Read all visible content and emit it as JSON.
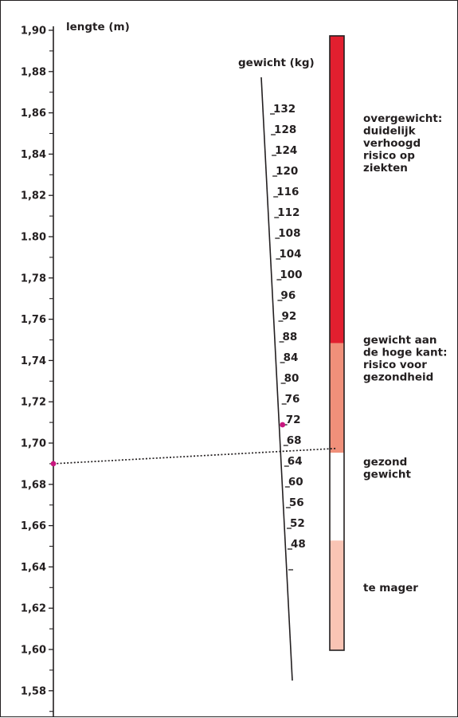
{
  "chart_data": {
    "type": "nomogram",
    "height_axis": {
      "title": "lengte (m)",
      "ticks": [
        "1,90",
        "1,88",
        "1,86",
        "1,84",
        "1,82",
        "1.80",
        "1,78",
        "1,76",
        "1,74",
        "1,72",
        "1,70",
        "1,68",
        "1,66",
        "1,64",
        "1,62",
        "1,60",
        "1,58"
      ]
    },
    "weight_axis": {
      "title": "gewicht (kg)",
      "ticks": [
        "132",
        "128",
        "124",
        "120",
        "116",
        "112",
        "108",
        "104",
        "100",
        "96",
        "92",
        "88",
        "84",
        "80",
        "76",
        "72",
        "68",
        "64",
        "60",
        "56",
        "52",
        "48"
      ]
    },
    "bmi_zones": [
      {
        "label_lines": [
          "overgewicht:",
          "duidelijk",
          "verhoogd",
          "risico op",
          "ziekten"
        ],
        "color": "#e21f2f",
        "bmi_from": 30,
        "bmi_to": 44
      },
      {
        "label_lines": [
          "gewicht aan",
          "de hoge kant:",
          "risico voor",
          "gezondheid"
        ],
        "color": "#f0907a",
        "bmi_from": 25,
        "bmi_to": 30
      },
      {
        "label_lines": [
          "gezond",
          "gewicht"
        ],
        "color": "#ffffff",
        "bmi_from": 21,
        "bmi_to": 25
      },
      {
        "label_lines": [
          "te mager"
        ],
        "color": "#f9c4b4",
        "bmi_from": 16,
        "bmi_to": 21
      }
    ],
    "example": {
      "height_m": 1.69,
      "weight_kg": 72,
      "bmi": 25.2
    },
    "marker_color": "#c8177f"
  }
}
